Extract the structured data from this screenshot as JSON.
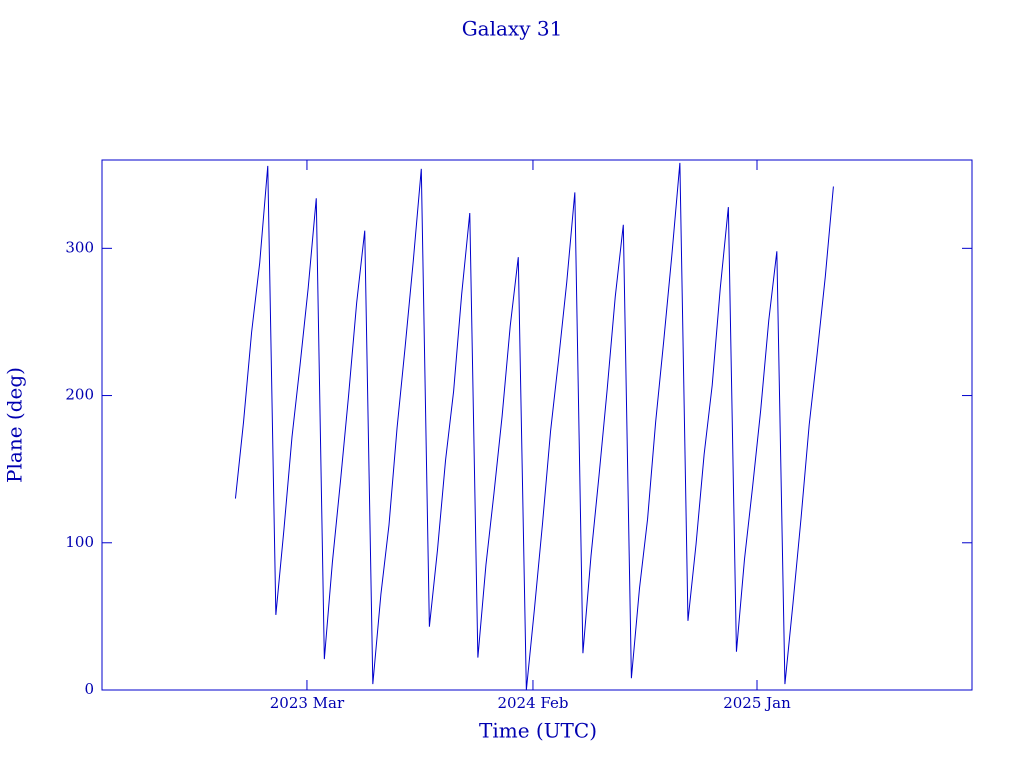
{
  "chart_data": {
    "type": "line",
    "title": "Galaxy 31",
    "x_label": "Time (UTC)",
    "y_label": "Plane (deg)",
    "color": "#0000cc",
    "xlim": [
      2022.325,
      2025.878
    ],
    "ylim": [
      0,
      360
    ],
    "xticks": [
      {
        "value": 2023.162,
        "label": "2023 Mar"
      },
      {
        "value": 2024.085,
        "label": "2024 Feb"
      },
      {
        "value": 2025.0,
        "label": "2025 Jan"
      }
    ],
    "yticks": [
      0,
      100,
      200,
      300
    ],
    "x": [
      2022.87,
      2022.903,
      2022.936,
      2022.969,
      2023.002,
      2023.035,
      2023.068,
      2023.101,
      2023.134,
      2023.167,
      2023.2,
      2023.233,
      2023.266,
      2023.299,
      2023.332,
      2023.365,
      2023.398,
      2023.431,
      2023.464,
      2023.497,
      2023.53,
      2023.563,
      2023.596,
      2023.629,
      2023.662,
      2023.695,
      2023.728,
      2023.761,
      2023.794,
      2023.827,
      2023.86,
      2023.893,
      2023.926,
      2023.959,
      2023.992,
      2024.025,
      2024.058,
      2024.091,
      2024.124,
      2024.157,
      2024.19,
      2024.223,
      2024.256,
      2024.289,
      2024.322,
      2024.355,
      2024.388,
      2024.421,
      2024.454,
      2024.487,
      2024.52,
      2024.553,
      2024.586,
      2024.619,
      2024.652,
      2024.685,
      2024.718,
      2024.751,
      2024.784,
      2024.817,
      2024.85,
      2024.883,
      2024.916,
      2024.949,
      2024.982,
      2025.015,
      2025.048,
      2025.081,
      2025.114,
      2025.147,
      2025.18,
      2025.213,
      2025.246,
      2025.279,
      2025.312
    ],
    "values": [
      130,
      182,
      243,
      290,
      356,
      51,
      109,
      172,
      221,
      273,
      334,
      21,
      87,
      142,
      200,
      263,
      312,
      4,
      65,
      112,
      178,
      233,
      291,
      354,
      43,
      95,
      156,
      203,
      269,
      324,
      22,
      85,
      134,
      186,
      247,
      294,
      0,
      55,
      113,
      176,
      225,
      277,
      338,
      25,
      91,
      146,
      204,
      267,
      316,
      8,
      69,
      116,
      182,
      237,
      295,
      358,
      47,
      99,
      160,
      207,
      273,
      328,
      26,
      89,
      138,
      190,
      251,
      298,
      4,
      59,
      117,
      180,
      229,
      281,
      342
    ]
  }
}
